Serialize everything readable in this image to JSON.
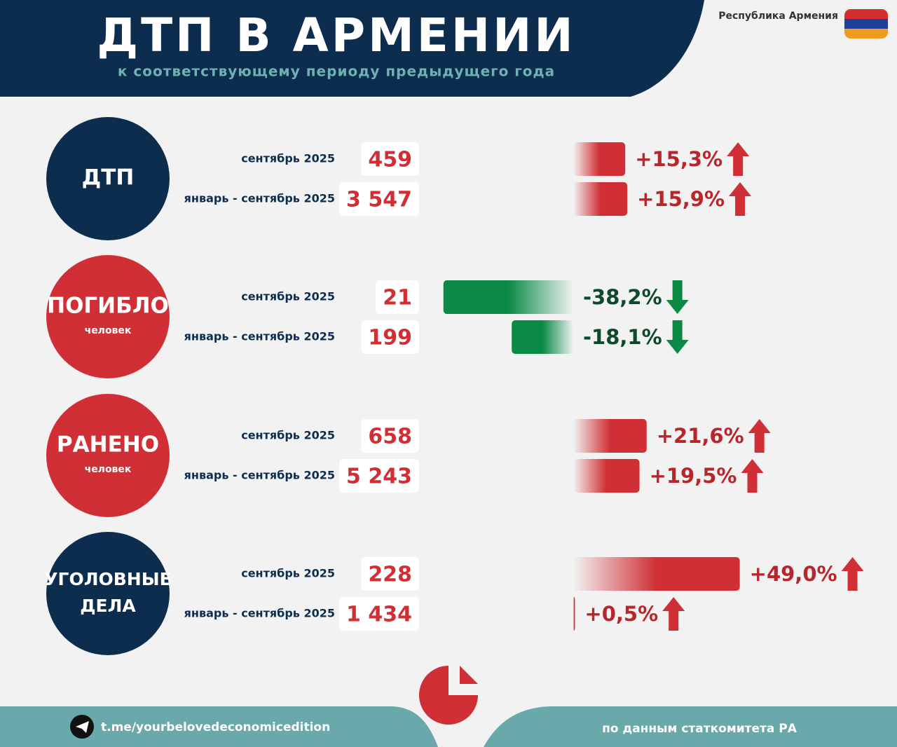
{
  "header": {
    "title": "ДТП В АРМЕНИИ",
    "subtitle": "к соответствующему периоду предыдущего года",
    "country": "Республика Армения"
  },
  "groups": [
    {
      "title": [
        "ДТП"
      ],
      "color": "#0d2d4f",
      "rows": [
        {
          "period": "сентябрь 2025",
          "count": "459",
          "change": {
            "value": 15.3,
            "label": "+15,3%"
          }
        },
        {
          "period": "январь - сентябрь 2025",
          "count": "3 547",
          "change": {
            "value": 15.9,
            "label": "+15,9%"
          }
        }
      ]
    },
    {
      "title": [
        "ПОГИБЛО"
      ],
      "unit": "человек",
      "color": "#d03035",
      "rows": [
        {
          "period": "сентябрь 2025",
          "count": "21",
          "change": {
            "value": -38.2,
            "label": "-38,2%"
          }
        },
        {
          "period": "январь - сентябрь 2025",
          "count": "199",
          "change": {
            "value": -18.1,
            "label": "-18,1%"
          }
        }
      ]
    },
    {
      "title": [
        "РАНЕНО"
      ],
      "unit": "человек",
      "color": "#d03035",
      "rows": [
        {
          "period": "сентябрь 2025",
          "count": "658",
          "change": {
            "value": 21.6,
            "label": "+21,6%"
          }
        },
        {
          "period": "январь - сентябрь 2025",
          "count": "5 243",
          "change": {
            "value": 19.5,
            "label": "+19,5%"
          }
        }
      ]
    },
    {
      "title": [
        "УГОЛОВНЫЕ",
        "ДЕЛА"
      ],
      "color": "#0d2d4f",
      "rows": [
        {
          "period": "сентябрь 2025",
          "count": "228",
          "change": {
            "value": 49.0,
            "label": "+49,0%"
          }
        },
        {
          "period": "январь - сентябрь 2025",
          "count": "1 434",
          "change": {
            "value": 0.5,
            "label": "+0,5%"
          }
        }
      ]
    }
  ],
  "footer": {
    "link": "t.me/yourbelovedeconomicedition",
    "source": "по данным статкомитета РА"
  }
}
